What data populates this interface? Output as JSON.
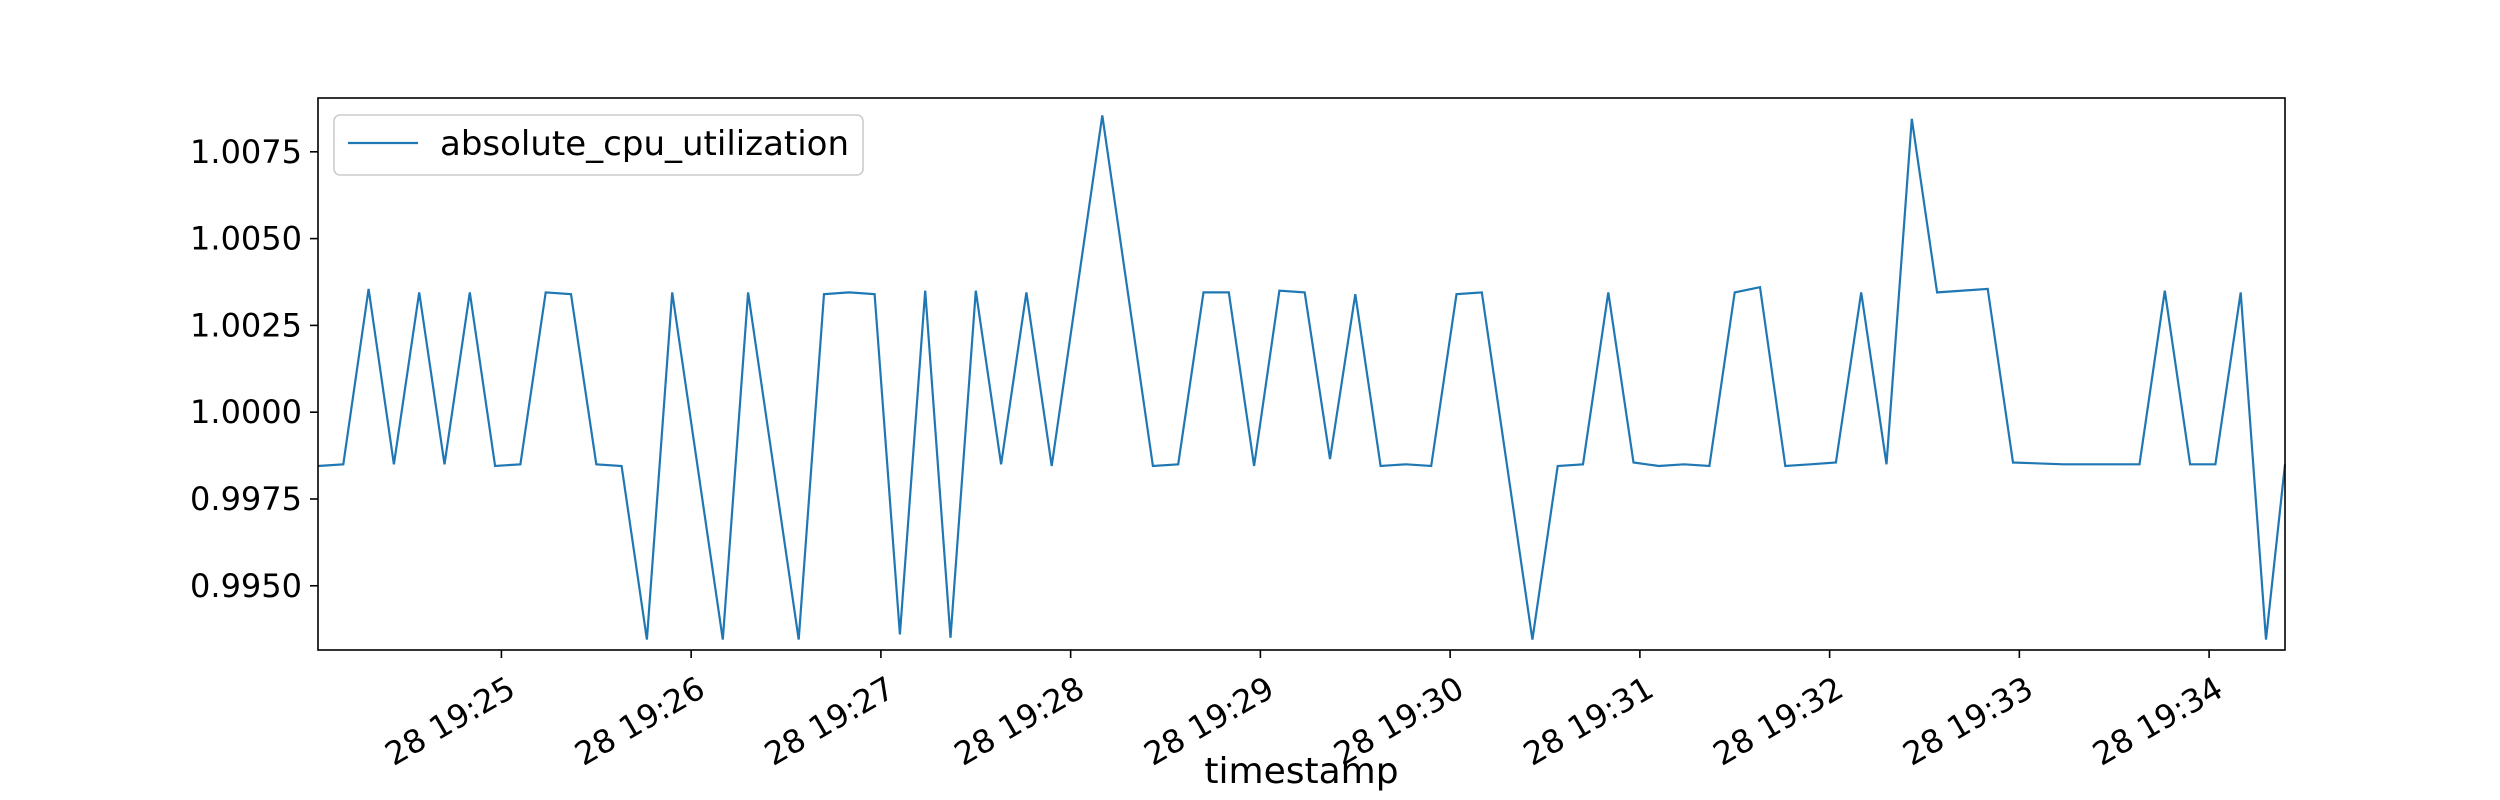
{
  "chart_data": {
    "type": "line",
    "title": "",
    "xlabel": "timestamp",
    "ylabel": "",
    "x_tick_labels": [
      "28 19:25",
      "28 19:26",
      "28 19:27",
      "28 19:28",
      "28 19:29",
      "28 19:30",
      "28 19:31",
      "28 19:32",
      "28 19:33",
      "28 19:34"
    ],
    "x_tick_minutes": [
      "19:25",
      "19:26",
      "19:27",
      "19:28",
      "19:29",
      "19:30",
      "19:31",
      "19:32",
      "19:33",
      "19:34"
    ],
    "y_tick_labels": [
      "0.9950",
      "0.9975",
      "1.0000",
      "1.0025",
      "1.0050",
      "1.0075"
    ],
    "y_tick_values": [
      0.995,
      0.9975,
      1.0,
      1.0025,
      1.005,
      1.0075
    ],
    "ylim": [
      0.99315,
      1.00905
    ],
    "xlim": [
      "19:24:02",
      "19:34:24"
    ],
    "grid": false,
    "legend_position": "upper-left",
    "colors": {
      "line": "#1f77b4",
      "axes": "#000000",
      "legend_border": "#cccccc"
    },
    "series": [
      {
        "name": "absolute_cpu_utilization",
        "x": [
          "19:24:02",
          "19:24:10",
          "19:24:18",
          "19:24:26",
          "19:24:34",
          "19:24:42",
          "19:24:50",
          "19:24:58",
          "19:25:06",
          "19:25:14",
          "19:25:22",
          "19:25:30",
          "19:25:38",
          "19:25:46",
          "19:25:54",
          "19:26:10",
          "19:26:18",
          "19:26:34",
          "19:26:42",
          "19:26:50",
          "19:26:58",
          "19:27:06",
          "19:27:14",
          "19:27:22",
          "19:27:30",
          "19:27:38",
          "19:27:46",
          "19:27:54",
          "19:28:10",
          "19:28:26",
          "19:28:34",
          "19:28:42",
          "19:28:50",
          "19:28:58",
          "19:29:06",
          "19:29:14",
          "19:29:22",
          "19:29:30",
          "19:29:38",
          "19:29:46",
          "19:29:54",
          "19:30:02",
          "19:30:10",
          "19:30:26",
          "19:30:34",
          "19:30:42",
          "19:30:50",
          "19:30:58",
          "19:31:06",
          "19:31:14",
          "19:31:22",
          "19:31:30",
          "19:31:38",
          "19:31:46",
          "19:31:54",
          "19:32:02",
          "19:32:10",
          "19:32:18",
          "19:32:26",
          "19:32:34",
          "19:32:50",
          "19:32:58",
          "19:33:14",
          "19:33:22",
          "19:33:38",
          "19:33:46",
          "19:33:54",
          "19:34:02",
          "19:34:10",
          "19:34:18",
          "19:34:24"
        ],
        "values": [
          0.99845,
          0.9985,
          1.00355,
          0.9985,
          1.00345,
          0.9985,
          1.00345,
          0.99845,
          0.9985,
          1.00345,
          1.0034,
          0.9985,
          0.99845,
          0.99345,
          1.00345,
          0.99345,
          1.00345,
          0.99345,
          1.0034,
          1.00345,
          1.0034,
          0.9936,
          1.0035,
          0.9935,
          1.0035,
          0.9985,
          1.00345,
          0.99845,
          1.00855,
          0.99845,
          0.9985,
          1.00345,
          1.00345,
          0.99845,
          1.0035,
          1.00345,
          0.99865,
          1.0034,
          0.99845,
          0.9985,
          0.99845,
          1.0034,
          1.00345,
          0.99345,
          0.99845,
          0.9985,
          1.00345,
          0.99855,
          0.99845,
          0.9985,
          0.99845,
          1.00345,
          1.0036,
          0.99845,
          0.9985,
          0.99855,
          1.00345,
          0.9985,
          1.00845,
          1.00345,
          1.00355,
          0.99855,
          0.9985,
          0.9985,
          0.9985,
          1.0035,
          0.9985,
          0.9985,
          1.00345,
          0.99345,
          0.9985
        ]
      }
    ]
  }
}
